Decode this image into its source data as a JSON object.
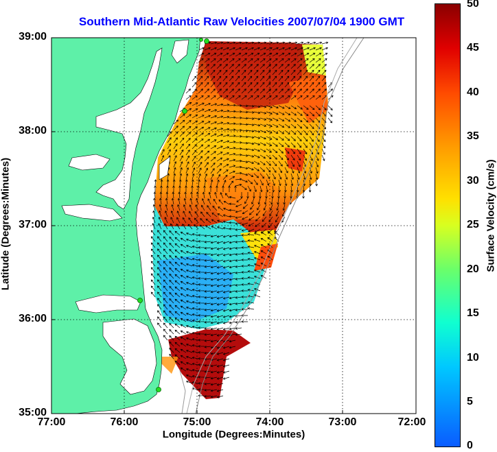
{
  "title": "Southern Mid-Atlantic Raw Velocities 2007/07/04 1900 GMT",
  "axes": {
    "xlabel": "Longitude (Degrees:Minutes)",
    "ylabel": "Latitude (Degrees:Minutes)",
    "xticks": [
      "77:00",
      "76:00",
      "75:00",
      "74:00",
      "73:00",
      "72:00"
    ],
    "yticks": [
      "39:00",
      "38:00",
      "37:00",
      "36:00",
      "35:00"
    ],
    "grid": "dotted"
  },
  "colorbar": {
    "label": "Surface Velocity (cm/s)",
    "ticks": [
      "50",
      "45",
      "40",
      "35",
      "30",
      "25",
      "20",
      "15",
      "10",
      "5",
      "0"
    ],
    "range": [
      0,
      50
    ]
  },
  "colors": {
    "land": "#5ef0a8",
    "water": "#ffffff",
    "title": "#0000ff",
    "station": "#22dd22"
  },
  "stations_count_visible": 5
}
